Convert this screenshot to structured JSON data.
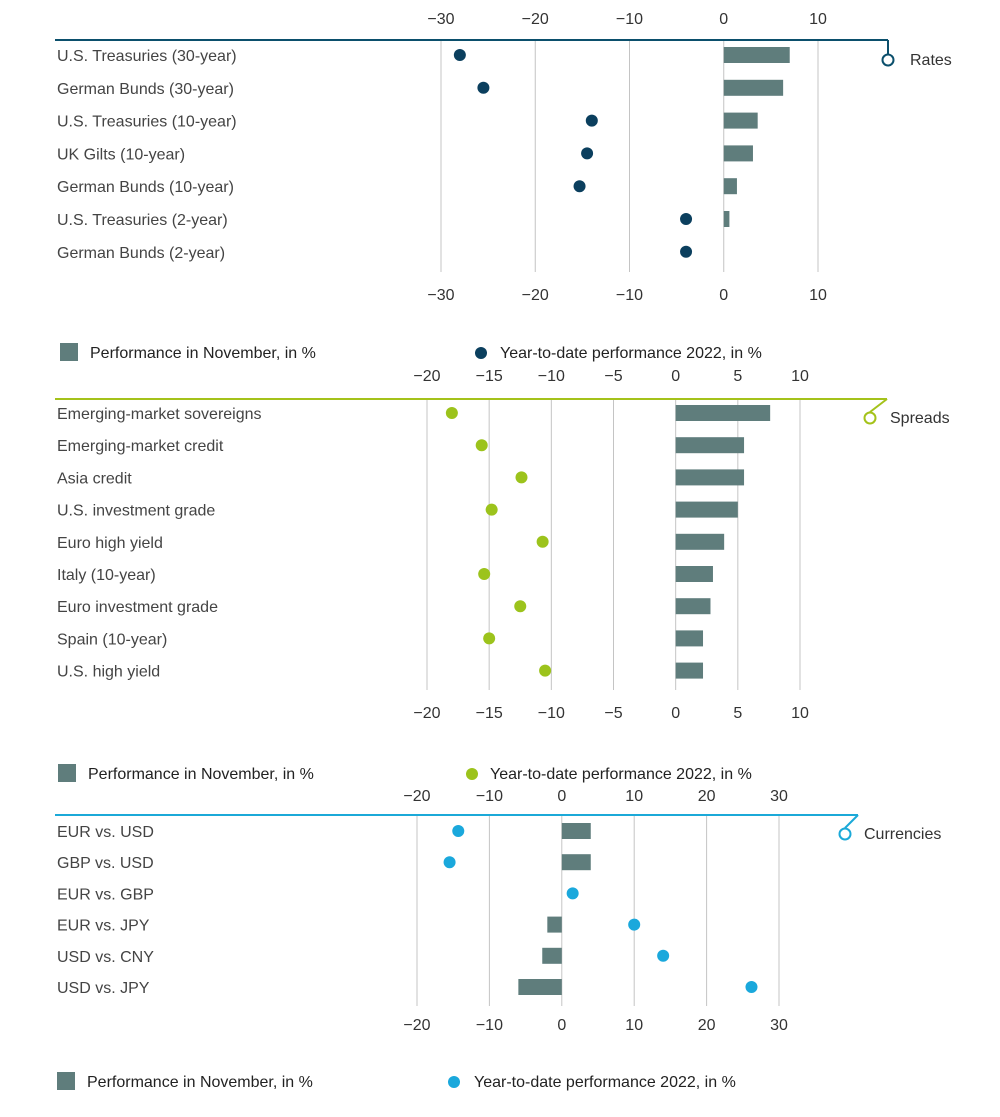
{
  "chart_data": [
    {
      "type": "bar",
      "title": "Rates",
      "accent_color": "#0b4f6c",
      "bar_color": "#5f7d7c",
      "point_color": "#0b3f5e",
      "xlim": [
        -30,
        10
      ],
      "ticks": [
        -30,
        -20,
        -10,
        0,
        10
      ],
      "tick_labels": [
        "−30",
        "−20",
        "−10",
        "0",
        "10"
      ],
      "grid": true,
      "categories": [
        "U.S. Treasuries (30-year)",
        "German Bunds (30-year)",
        "U.S. Treasuries (10-year)",
        "UK Gilts (10-year)",
        "German Bunds (10-year)",
        "U.S. Treasuries (2-year)",
        "German Bunds (2-year)"
      ],
      "series": [
        {
          "name": "Performance in November, in %",
          "kind": "bar",
          "values": [
            7.0,
            6.3,
            3.6,
            3.1,
            1.4,
            0.6,
            0.0
          ]
        },
        {
          "name": "Year-to-date performance 2022, in %",
          "kind": "point",
          "values": [
            -28.0,
            -25.5,
            -14.0,
            -14.5,
            -15.3,
            -4.0,
            -4.0
          ]
        }
      ]
    },
    {
      "type": "bar",
      "title": "Spreads",
      "accent_color": "#a4c21a",
      "bar_color": "#5f7d7c",
      "point_color": "#9cc31c",
      "xlim": [
        -20,
        10
      ],
      "ticks": [
        -20,
        -15,
        -10,
        -5,
        0,
        5,
        10
      ],
      "tick_labels": [
        "−20",
        "−15",
        "−10",
        "−5",
        "0",
        "5",
        "10"
      ],
      "grid": true,
      "categories": [
        "Emerging-market sovereigns",
        "Emerging-market credit",
        "Asia credit",
        "U.S. investment grade",
        "Euro high yield",
        "Italy (10-year)",
        "Euro investment grade",
        "Spain (10-year)",
        "U.S. high yield"
      ],
      "series": [
        {
          "name": "Performance in November, in %",
          "kind": "bar",
          "values": [
            7.6,
            5.5,
            5.5,
            5.0,
            3.9,
            3.0,
            2.8,
            2.2,
            2.2
          ]
        },
        {
          "name": "Year-to-date performance 2022, in %",
          "kind": "point",
          "values": [
            -18.0,
            -15.6,
            -12.4,
            -14.8,
            -10.7,
            -15.4,
            -12.5,
            -15.0,
            -10.5
          ]
        }
      ]
    },
    {
      "type": "bar",
      "title": "Currencies",
      "accent_color": "#1ba9d8",
      "bar_color": "#5f7d7c",
      "point_color": "#1aa8dc",
      "xlim": [
        -20,
        30
      ],
      "ticks": [
        -20,
        -10,
        0,
        10,
        20,
        30
      ],
      "tick_labels": [
        "−20",
        "−10",
        "0",
        "10",
        "20",
        "30"
      ],
      "grid": true,
      "categories": [
        "EUR vs. USD",
        "GBP vs. USD",
        "EUR vs. GBP",
        "EUR vs. JPY",
        "USD vs. CNY",
        "USD vs. JPY"
      ],
      "series": [
        {
          "name": "Performance in November, in %",
          "kind": "bar",
          "values": [
            4.0,
            4.0,
            0.0,
            -2.0,
            -2.7,
            -6.0
          ]
        },
        {
          "name": "Year-to-date performance 2022, in %",
          "kind": "point",
          "values": [
            -14.3,
            -15.5,
            1.5,
            10.0,
            14.0,
            26.2
          ]
        }
      ]
    }
  ]
}
